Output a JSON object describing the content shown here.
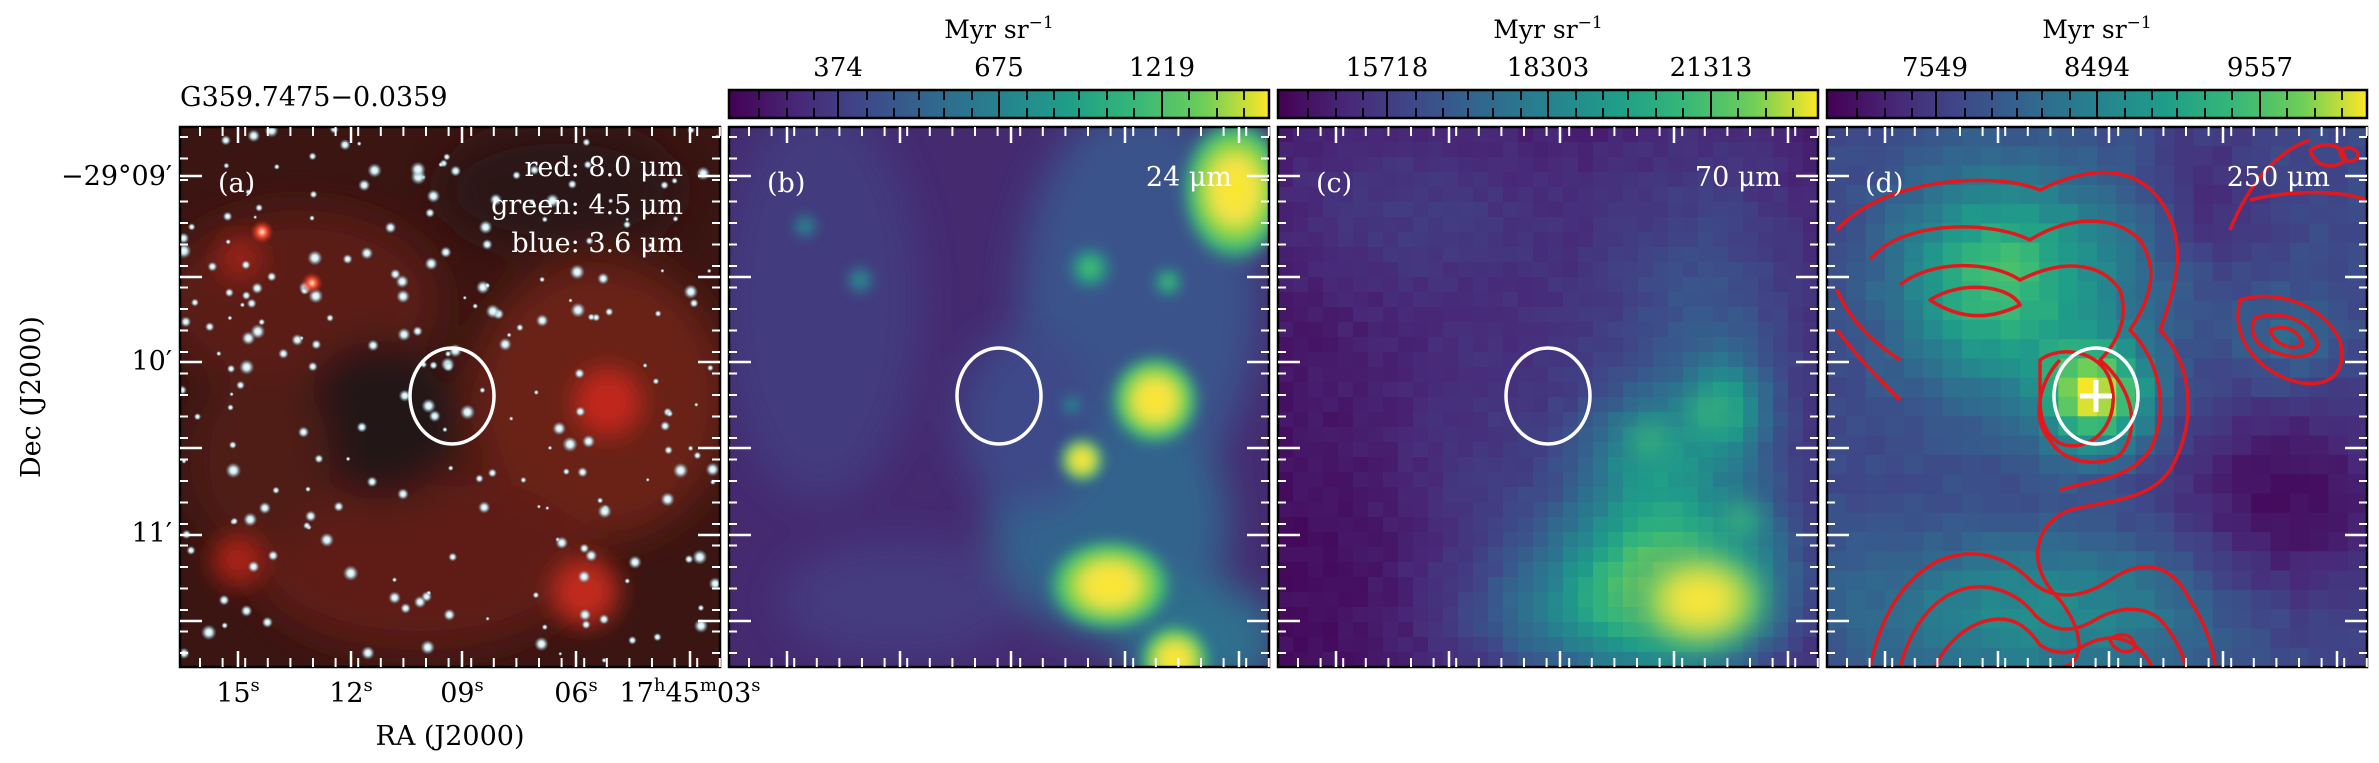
{
  "figure": {
    "source_title": "G359.7475−0.0359",
    "ra_axis_label": "RA (J2000)",
    "dec_axis_label": "Dec (J2000)",
    "dec_tick_labels": [
      "−29°09′",
      "10′",
      "11′"
    ],
    "ra_tick_labels": [
      {
        "main": "15",
        "sup": "s"
      },
      {
        "main": "12",
        "sup": "s"
      },
      {
        "main": "09",
        "sup": "s"
      },
      {
        "main": "06",
        "sup": "s"
      },
      {
        "main": "17",
        "sup": "h",
        "main2": "45",
        "sup2": "m",
        "main3": "03",
        "sup3": "s"
      }
    ]
  },
  "panels": [
    {
      "tag": "(a)",
      "legend": [
        "red: 8.0 μm",
        "green: 4.5 μm",
        "blue: 3.6 μm"
      ],
      "colormap": "rgb-composite"
    },
    {
      "tag": "(b)",
      "wavelength_label": "24 μm",
      "colorbar": {
        "unit": "Myr sr",
        "unit_exp": "−1",
        "ticks": [
          "374",
          "675",
          "1219"
        ]
      },
      "colormap": "viridis"
    },
    {
      "tag": "(c)",
      "wavelength_label": "70 μm",
      "colorbar": {
        "unit": "Myr sr",
        "unit_exp": "−1",
        "ticks": [
          "15718",
          "18303",
          "21313"
        ]
      },
      "colormap": "viridis"
    },
    {
      "tag": "(d)",
      "wavelength_label": "250 μm",
      "colorbar": {
        "unit": "Myr sr",
        "unit_exp": "−1",
        "ticks": [
          "7549",
          "8494",
          "9557"
        ]
      },
      "colormap": "viridis",
      "contour_color": "#e3181c",
      "marker": "cross"
    }
  ],
  "colors": {
    "frame": "#000000",
    "circle": "#ffffff",
    "viridis_dark": "#440154",
    "viridis_mid": "#21908c",
    "viridis_light": "#fde725"
  }
}
